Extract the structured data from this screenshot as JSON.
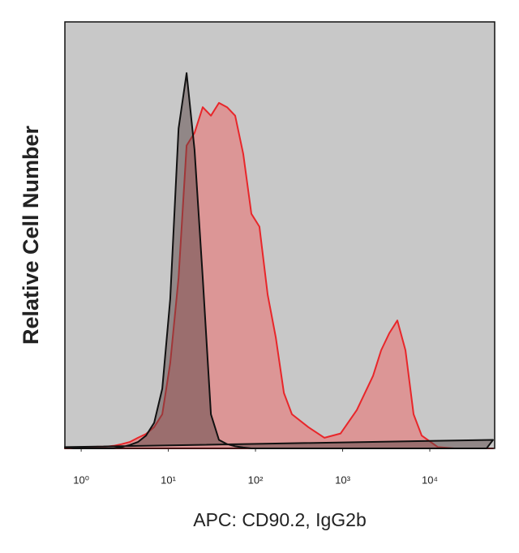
{
  "chart_data": {
    "type": "area",
    "xscale": "log",
    "background": "#c8c8c8",
    "xlabel": "APC: CD90.2, IgG2b",
    "ylabel": "Relative Cell Number",
    "x": [
      0.65,
      0.81,
      1,
      1.24,
      1.53,
      1.9,
      2.36,
      2.92,
      3.61,
      4.48,
      5.55,
      6.87,
      8.51,
      10.5,
      13.1,
      16.2,
      20,
      24.8,
      30.8,
      38.1,
      47.2,
      58.5,
      72.4,
      89.8,
      111,
      138,
      171,
      212,
      262,
      403,
      618,
      948,
      1455,
      2233,
      2767,
      3428,
      4246,
      5260,
      6516,
      8072,
      12390,
      19010,
      29170,
      44770,
      53210
    ],
    "series": [
      {
        "name": "CD90.2",
        "color": "#e8262a",
        "fill": "rgba(236,110,110,0.55)",
        "values": [
          0,
          0,
          0,
          0.2,
          0.4,
          0.4,
          0.6,
          1,
          1.5,
          2.5,
          3.4,
          5,
          8,
          20,
          40,
          71,
          74,
          80,
          78,
          81,
          80,
          78,
          69,
          55,
          52,
          36,
          26,
          13,
          8,
          5,
          2.5,
          3.5,
          9,
          17,
          23,
          27,
          30,
          23,
          8,
          3,
          0.3,
          0,
          0,
          0,
          0
        ]
      },
      {
        "name": "IgG2b",
        "color": "#111111",
        "fill": "rgba(90,70,70,0.5)",
        "values": [
          0.3,
          0,
          0,
          0,
          0,
          0,
          0,
          0.3,
          0.8,
          1.5,
          3,
          6,
          14,
          35,
          75,
          88,
          70,
          40,
          8,
          2,
          1,
          0.5,
          0.2,
          0,
          0,
          0,
          0,
          0,
          0,
          0,
          0,
          0,
          0,
          0,
          0,
          0,
          0,
          0,
          0,
          0,
          0,
          0,
          0,
          0,
          2
        ]
      }
    ],
    "xlim": [
      0.65,
      55500
    ],
    "ylim": [
      0,
      100
    ],
    "xticks": [
      {
        "value": 1,
        "label": "10⁰"
      },
      {
        "value": 10,
        "label": "10¹"
      },
      {
        "value": 100,
        "label": "10²"
      },
      {
        "value": 1000,
        "label": "10³"
      },
      {
        "value": 10000,
        "label": "10⁴"
      }
    ]
  }
}
